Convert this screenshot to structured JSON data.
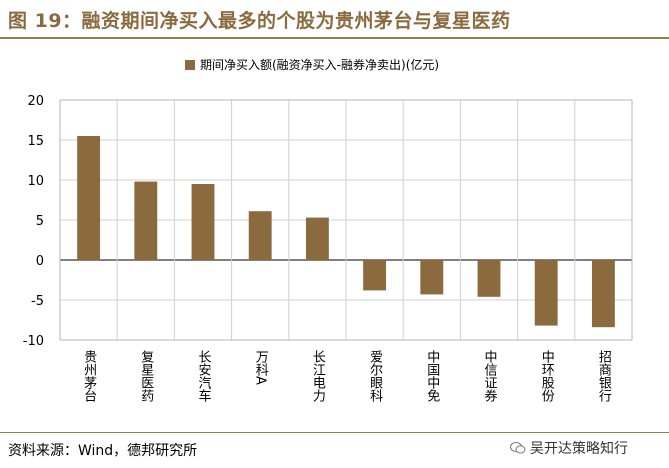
{
  "title": "图 19：融资期间净买入最多的个股为贵州茅台与复星医药",
  "source": "资料来源：Wind，德邦研究所",
  "watermark": "吴开达策略知行",
  "colors": {
    "bar": "#8b6a3e",
    "title": "#8c6a3f",
    "grid": "#d0d0d0"
  },
  "chart_data": {
    "type": "bar",
    "categories": [
      "贵州茅台",
      "复星医药",
      "长安汽车",
      "万科A",
      "长江电力",
      "爱尔眼科",
      "中国中免",
      "中信证券",
      "中环股份",
      "招商银行"
    ],
    "series": [
      {
        "name": "期间净买入额(融资净买入-融券净卖出)(亿元)",
        "values": [
          15.5,
          9.8,
          9.5,
          6.1,
          5.3,
          -3.8,
          -4.3,
          -4.6,
          -8.2,
          -8.4
        ]
      }
    ],
    "ylim": [
      -10,
      20
    ],
    "yticks": [
      -10,
      -5,
      0,
      5,
      10,
      15,
      20
    ],
    "grid": true,
    "legend": "top-center"
  }
}
